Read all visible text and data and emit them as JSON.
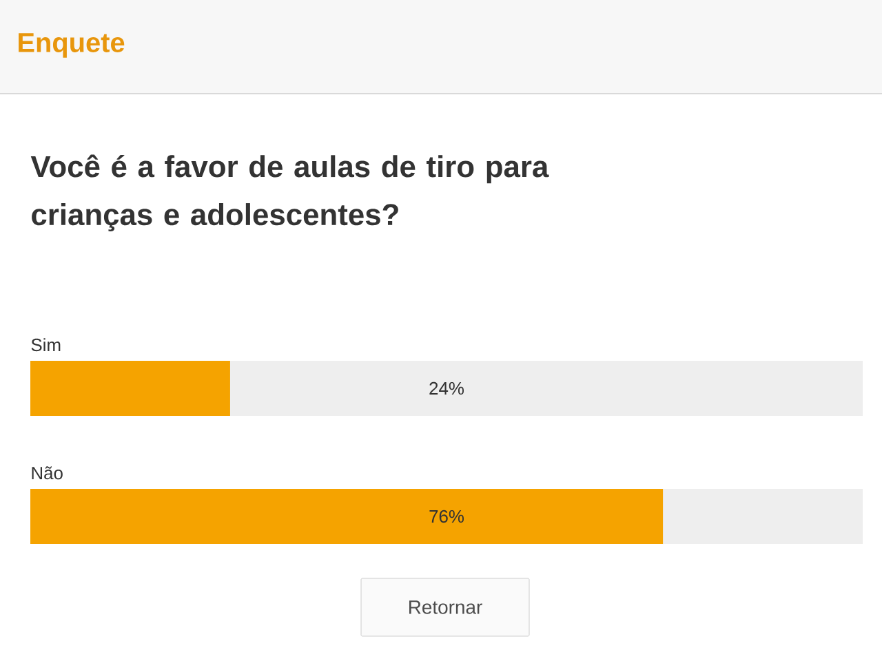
{
  "chart_data": {
    "type": "bar",
    "orientation": "horizontal",
    "title": "Enquete",
    "subtitle": "Você é a favor de aulas de tiro para crianças e adolescentes?",
    "categories": [
      "Sim",
      "Não"
    ],
    "values": [
      24,
      76
    ],
    "value_labels": [
      "24%",
      "76%"
    ],
    "color": "#f5a300",
    "xlim": [
      0,
      100
    ],
    "annotations": [
      "Retornar"
    ]
  }
}
